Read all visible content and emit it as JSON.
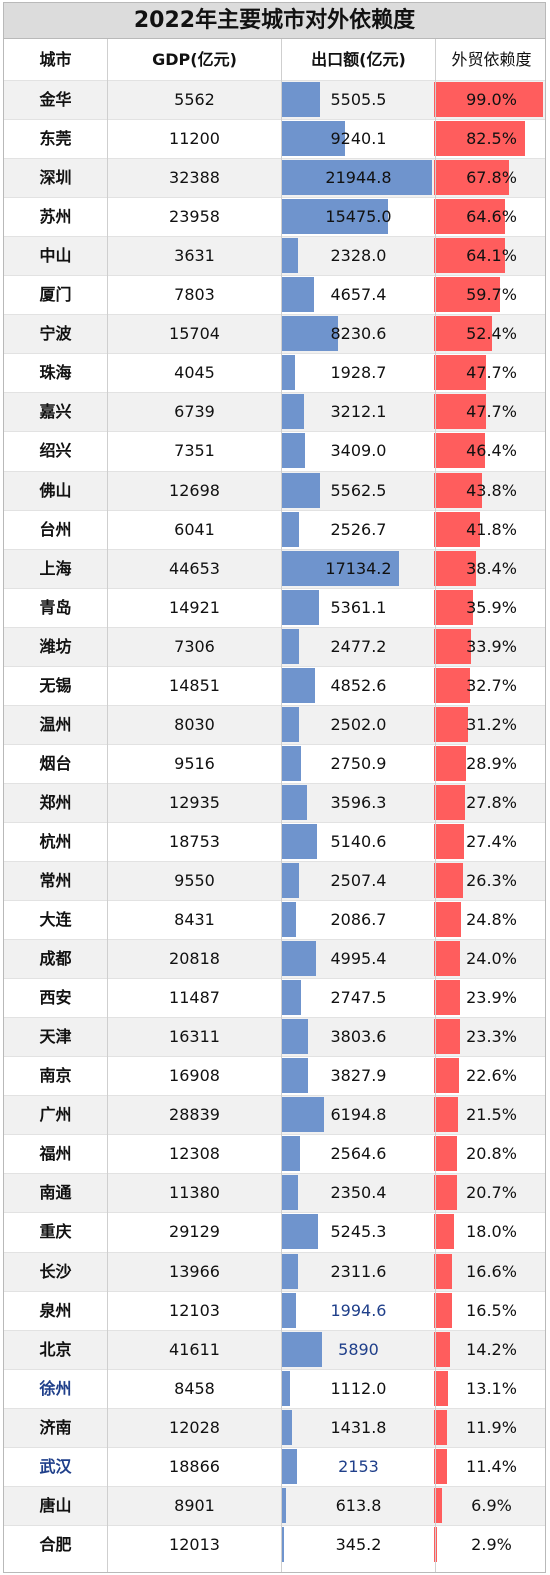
{
  "chart_data": {
    "type": "table",
    "title": "2022年主要城市对外依赖度",
    "columns": [
      "城市",
      "GDP(亿元)",
      "出口额(亿元)",
      "外贸依赖度"
    ],
    "export_max": 21944.8,
    "colors": {
      "export_bar": "#6f94cd",
      "rate_bar": "#ff5d5d",
      "highlight_text": "#1f3f8a"
    },
    "rows": [
      {
        "city": "金华",
        "gdp": "5562",
        "export": "5505.5",
        "rate": "99.0%"
      },
      {
        "city": "东莞",
        "gdp": "11200",
        "export": "9240.1",
        "rate": "82.5%"
      },
      {
        "city": "深圳",
        "gdp": "32388",
        "export": "21944.8",
        "rate": "67.8%"
      },
      {
        "city": "苏州",
        "gdp": "23958",
        "export": "15475.0",
        "rate": "64.6%"
      },
      {
        "city": "中山",
        "gdp": "3631",
        "export": "2328.0",
        "rate": "64.1%"
      },
      {
        "city": "厦门",
        "gdp": "7803",
        "export": "4657.4",
        "rate": "59.7%"
      },
      {
        "city": "宁波",
        "gdp": "15704",
        "export": "8230.6",
        "rate": "52.4%"
      },
      {
        "city": "珠海",
        "gdp": "4045",
        "export": "1928.7",
        "rate": "47.7%"
      },
      {
        "city": "嘉兴",
        "gdp": "6739",
        "export": "3212.1",
        "rate": "47.7%"
      },
      {
        "city": "绍兴",
        "gdp": "7351",
        "export": "3409.0",
        "rate": "46.4%"
      },
      {
        "city": "佛山",
        "gdp": "12698",
        "export": "5562.5",
        "rate": "43.8%"
      },
      {
        "city": "台州",
        "gdp": "6041",
        "export": "2526.7",
        "rate": "41.8%"
      },
      {
        "city": "上海",
        "gdp": "44653",
        "export": "17134.2",
        "rate": "38.4%"
      },
      {
        "city": "青岛",
        "gdp": "14921",
        "export": "5361.1",
        "rate": "35.9%"
      },
      {
        "city": "潍坊",
        "gdp": "7306",
        "export": "2477.2",
        "rate": "33.9%"
      },
      {
        "city": "无锡",
        "gdp": "14851",
        "export": "4852.6",
        "rate": "32.7%"
      },
      {
        "city": "温州",
        "gdp": "8030",
        "export": "2502.0",
        "rate": "31.2%"
      },
      {
        "city": "烟台",
        "gdp": "9516",
        "export": "2750.9",
        "rate": "28.9%"
      },
      {
        "city": "郑州",
        "gdp": "12935",
        "export": "3596.3",
        "rate": "27.8%"
      },
      {
        "city": "杭州",
        "gdp": "18753",
        "export": "5140.6",
        "rate": "27.4%"
      },
      {
        "city": "常州",
        "gdp": "9550",
        "export": "2507.4",
        "rate": "26.3%"
      },
      {
        "city": "大连",
        "gdp": "8431",
        "export": "2086.7",
        "rate": "24.8%"
      },
      {
        "city": "成都",
        "gdp": "20818",
        "export": "4995.4",
        "rate": "24.0%"
      },
      {
        "city": "西安",
        "gdp": "11487",
        "export": "2747.5",
        "rate": "23.9%"
      },
      {
        "city": "天津",
        "gdp": "16311",
        "export": "3803.6",
        "rate": "23.3%"
      },
      {
        "city": "南京",
        "gdp": "16908",
        "export": "3827.9",
        "rate": "22.6%"
      },
      {
        "city": "广州",
        "gdp": "28839",
        "export": "6194.8",
        "rate": "21.5%"
      },
      {
        "city": "福州",
        "gdp": "12308",
        "export": "2564.6",
        "rate": "20.8%"
      },
      {
        "city": "南通",
        "gdp": "11380",
        "export": "2350.4",
        "rate": "20.7%"
      },
      {
        "city": "重庆",
        "gdp": "29129",
        "export": "5245.3",
        "rate": "18.0%"
      },
      {
        "city": "长沙",
        "gdp": "13966",
        "export": "2311.6",
        "rate": "16.6%"
      },
      {
        "city": "泉州",
        "gdp": "12103",
        "export": "1994.6",
        "rate": "16.5%",
        "export_highlight": true
      },
      {
        "city": "北京",
        "gdp": "41611",
        "export": "5890",
        "rate": "14.2%",
        "export_highlight": true
      },
      {
        "city": "徐州",
        "gdp": "8458",
        "export": "1112.0",
        "rate": "13.1%",
        "city_highlight": true
      },
      {
        "city": "济南",
        "gdp": "12028",
        "export": "1431.8",
        "rate": "11.9%"
      },
      {
        "city": "武汉",
        "gdp": "18866",
        "export": "2153",
        "rate": "11.4%",
        "city_highlight": true,
        "export_highlight": true
      },
      {
        "city": "唐山",
        "gdp": "8901",
        "export": "613.8",
        "rate": "6.9%"
      },
      {
        "city": "合肥",
        "gdp": "12013",
        "export": "345.2",
        "rate": "2.9%"
      }
    ]
  }
}
